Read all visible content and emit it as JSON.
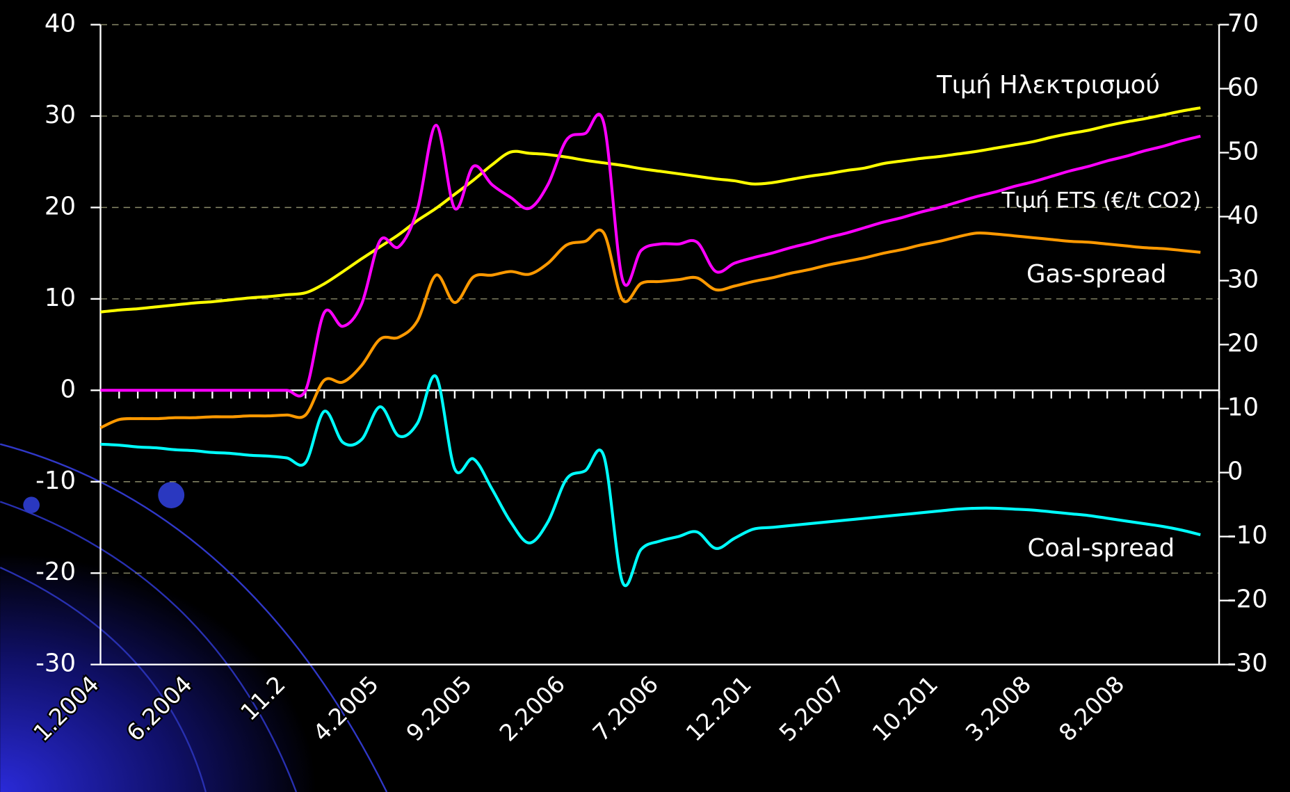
{
  "chart_data": {
    "type": "line",
    "categories": [
      "1.2004",
      null,
      null,
      null,
      null,
      "6.2004",
      null,
      null,
      null,
      null,
      "11.2",
      null,
      null,
      null,
      null,
      "4.2005",
      null,
      null,
      null,
      null,
      "9.2005",
      null,
      null,
      null,
      null,
      "2.2006",
      null,
      null,
      null,
      null,
      "7.2006",
      null,
      null,
      null,
      null,
      "12.201",
      null,
      null,
      null,
      null,
      "5.2007",
      null,
      null,
      null,
      null,
      "10.201",
      null,
      null,
      null,
      null,
      "3.2008",
      null,
      null,
      null,
      null,
      "8.2008",
      null,
      null,
      null,
      null
    ],
    "series": [
      {
        "name": "Τιμή Ηλεκτρισμού",
        "color": "#ffff00",
        "axis": "y2",
        "values": [
          25.1,
          25.4,
          25.6,
          25.9,
          26.2,
          26.5,
          26.7,
          27.0,
          27.3,
          27.5,
          27.8,
          28.1,
          29.5,
          31.4,
          33.4,
          35.3,
          37.2,
          39.4,
          41.3,
          43.5,
          45.7,
          48.1,
          50.1,
          49.9,
          49.7,
          49.3,
          48.8,
          48.4,
          48.0,
          47.5,
          47.1,
          46.7,
          46.3,
          45.9,
          45.6,
          45.1,
          45.3,
          45.8,
          46.3,
          46.7,
          47.2,
          47.6,
          48.3,
          48.7,
          49.1,
          49.4,
          49.8,
          50.2,
          50.7,
          51.2,
          51.7,
          52.4,
          53.0,
          53.5,
          54.2,
          54.8,
          55.3,
          55.9,
          56.5,
          57.0
        ]
      },
      {
        "name": "Τιμή ETS (€/t CO2)",
        "color": "#ff00ff",
        "values": [
          0,
          0,
          0,
          0,
          0,
          0,
          0,
          0,
          0,
          0,
          0,
          0,
          8.5,
          7.0,
          9.4,
          16.4,
          15.7,
          19.8,
          29.0,
          19.9,
          24.5,
          22.5,
          21.1,
          19.9,
          22.5,
          27.4,
          28.1,
          29.2,
          12.1,
          15.3,
          16.0,
          16.0,
          16.2,
          13.0,
          13.9,
          14.5,
          15.0,
          15.6,
          16.1,
          16.7,
          17.2,
          17.8,
          18.4,
          18.9,
          19.5,
          20.0,
          20.6,
          21.2,
          21.7,
          22.3,
          22.8,
          23.4,
          24.0,
          24.5,
          25.1,
          25.6,
          26.2,
          26.7,
          27.3,
          27.8
        ]
      },
      {
        "name": "Gas-spread",
        "color": "#ff9900",
        "values": [
          -4.1,
          -3.2,
          -3.1,
          -3.1,
          -3.0,
          -3.0,
          -2.9,
          -2.9,
          -2.8,
          -2.8,
          -2.7,
          -2.7,
          1.1,
          0.9,
          2.7,
          5.6,
          5.8,
          7.6,
          12.6,
          9.6,
          12.4,
          12.6,
          13.0,
          12.7,
          13.9,
          15.9,
          16.3,
          17.2,
          9.9,
          11.7,
          11.9,
          12.1,
          12.3,
          11.0,
          11.4,
          11.9,
          12.3,
          12.8,
          13.2,
          13.7,
          14.1,
          14.5,
          15.0,
          15.4,
          15.9,
          16.3,
          16.8,
          17.2,
          17.1,
          16.9,
          16.7,
          16.5,
          16.3,
          16.2,
          16.0,
          15.8,
          15.6,
          15.5,
          15.3,
          15.1
        ]
      },
      {
        "name": "Coal-spread",
        "color": "#00ffff",
        "values": [
          -5.9,
          -6.0,
          -6.2,
          -6.3,
          -6.5,
          -6.6,
          -6.8,
          -6.9,
          -7.1,
          -7.2,
          -7.4,
          -7.9,
          -2.3,
          -5.7,
          -5.4,
          -1.8,
          -5.0,
          -3.6,
          1.5,
          -8.6,
          -7.5,
          -10.8,
          -14.4,
          -16.7,
          -14.4,
          -9.7,
          -8.8,
          -7.2,
          -21.0,
          -17.4,
          -16.5,
          -16.0,
          -15.5,
          -17.3,
          -16.2,
          -15.2,
          -15.0,
          -14.8,
          -14.6,
          -14.4,
          -14.2,
          -14.0,
          -13.8,
          -13.6,
          -13.4,
          -13.2,
          -13.0,
          -12.9,
          -12.9,
          -13.0,
          -13.1,
          -13.3,
          -13.5,
          -13.7,
          -14.0,
          -14.3,
          -14.6,
          -14.9,
          -15.3,
          -15.8
        ]
      }
    ],
    "ylim": [
      -30,
      40
    ],
    "yticks": [
      -30,
      -20,
      -10,
      0,
      10,
      20,
      30,
      40
    ],
    "y2lim": [
      -30,
      70
    ],
    "y2ticks": [
      -30,
      -20,
      -10,
      0,
      10,
      20,
      30,
      40,
      50,
      60,
      70
    ],
    "grid": true
  }
}
